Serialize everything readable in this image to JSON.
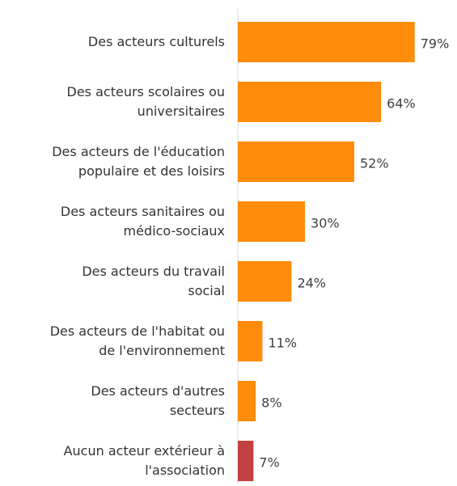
{
  "chart_data": {
    "type": "hbar",
    "categories": [
      "Des acteurs culturels",
      "Des acteurs scolaires ou\nuniversitaires",
      "Des acteurs de l'éducation\npopulaire et des loisirs",
      "Des acteurs sanitaires ou\nmédico-sociaux",
      "Des acteurs du travail\nsocial",
      "Des acteurs de l'habitat ou\nde l'environnement",
      "Des acteurs d'autres\nsecteurs",
      "Aucun acteur extérieur à\nl'association"
    ],
    "values": [
      79,
      64,
      52,
      30,
      24,
      11,
      8,
      7
    ],
    "value_labels": [
      "79%",
      "64%",
      "52%",
      "30%",
      "24%",
      "11%",
      "8%",
      "7%"
    ],
    "colors": [
      "#ff8c0a",
      "#ff8c0a",
      "#ff8c0a",
      "#ff8c0a",
      "#ff8c0a",
      "#ff8c0a",
      "#ff8c0a",
      "#c0413f"
    ],
    "xlim": [
      0,
      95
    ]
  }
}
